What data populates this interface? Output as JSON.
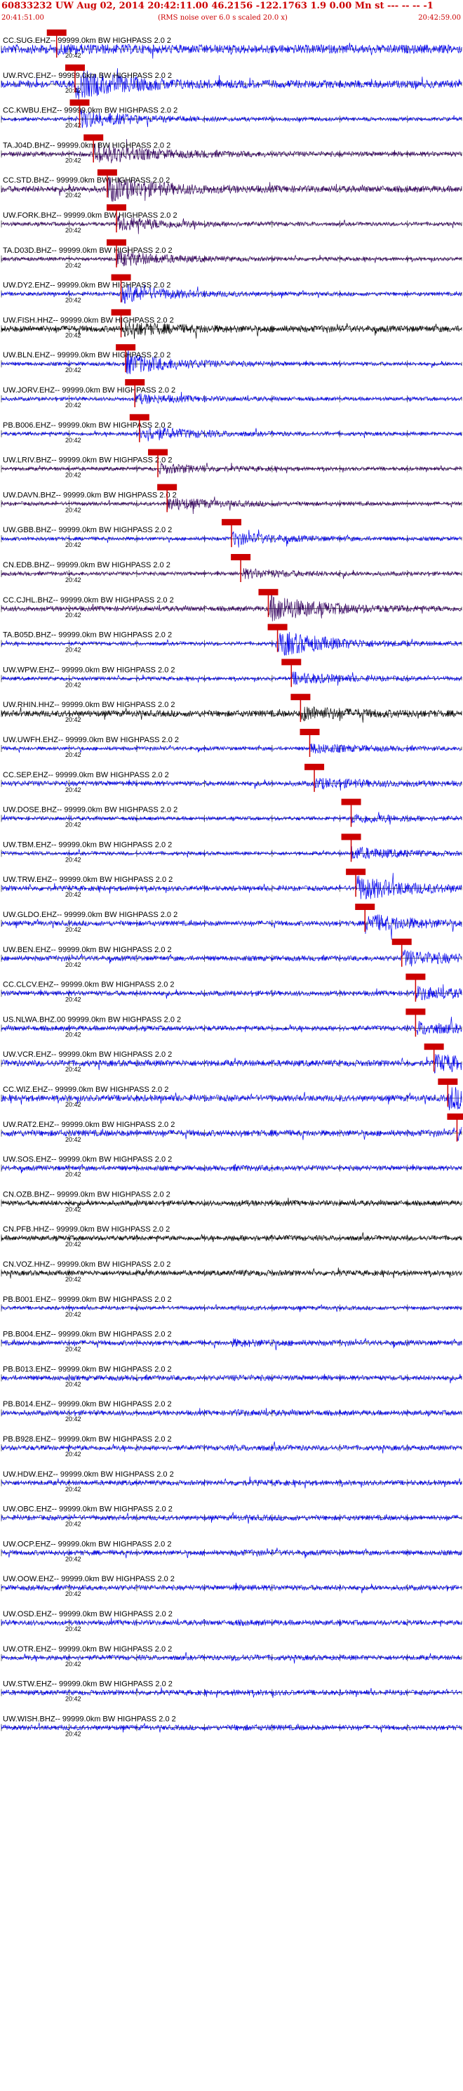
{
  "header": {
    "title": "60833232 UW Aug 02, 2014 20:42:11.00   46.2156 -122.1763  1.9 0.00 Mn st --- -- -- -1",
    "start_time": "20:41:51.00",
    "note": "(RMS noise over 6.0 s scaled 20.0 x)",
    "end_time": "20:42:59.00"
  },
  "colors": {
    "pick": "#cc0000",
    "trace_blue": "#0000ee",
    "trace_purple": "#33005e",
    "trace_black": "#000000",
    "axis": "#000000"
  },
  "chart_data": {
    "type": "line",
    "time_range": [
      "20:41:51.00",
      "20:42:59.00"
    ],
    "time_tick_label": "20:42",
    "traces": [
      {
        "label": "CC.SUG.EHZ-- 99999.0km BW  HIGHPASS  2.0  2",
        "color": "blue",
        "amp": 0.7,
        "burst": 0.1,
        "pick": 0.12
      },
      {
        "label": "UW.RVC.EHZ-- 99999.0km BW  HIGHPASS  2.0  2",
        "color": "blue",
        "amp": 0.6,
        "burst": 0.9,
        "pick": 0.16
      },
      {
        "label": "CC.KWBU.EHZ-- 99999.0km BW  HIGHPASS  2.0  2",
        "color": "blue",
        "amp": 0.3,
        "burst": 0.6,
        "pick": 0.17
      },
      {
        "label": "TA.J04D.BHZ-- 99999.0km BW  HIGHPASS  2.0  2",
        "color": "purple",
        "amp": 0.4,
        "burst": 0.7,
        "pick": 0.2
      },
      {
        "label": "CC.STD.BHZ-- 99999.0km BW  HIGHPASS  2.0  2",
        "color": "purple",
        "amp": 0.5,
        "burst": 0.8,
        "pick": 0.23
      },
      {
        "label": "UW.FORK.BHZ-- 99999.0km BW  HIGHPASS  2.0  2",
        "color": "purple",
        "amp": 0.3,
        "burst": 0.5,
        "pick": 0.25
      },
      {
        "label": "TA.D03D.BHZ-- 99999.0km BW  HIGHPASS  2.0  2",
        "color": "purple",
        "amp": 0.3,
        "burst": 0.5,
        "pick": 0.25
      },
      {
        "label": "UW.DY2.EHZ-- 99999.0km BW  HIGHPASS  2.0  2",
        "color": "blue",
        "amp": 0.3,
        "burst": 0.6,
        "pick": 0.26
      },
      {
        "label": "UW.FISH.HHZ-- 99999.0km BW  HIGHPASS  2.0  2",
        "color": "black",
        "amp": 0.5,
        "burst": 0.4,
        "pick": 0.26
      },
      {
        "label": "UW.BLN.EHZ-- 99999.0km BW  HIGHPASS  2.0  2",
        "color": "blue",
        "amp": 0.3,
        "burst": 0.7,
        "pick": 0.27
      },
      {
        "label": "UW.JORV.EHZ-- 99999.0km BW  HIGHPASS  2.0  2",
        "color": "blue",
        "amp": 0.3,
        "burst": 0.3,
        "pick": 0.29
      },
      {
        "label": "PB.B006.EHZ-- 99999.0km BW  HIGHPASS  2.0  2",
        "color": "blue",
        "amp": 0.3,
        "burst": 0.5,
        "pick": 0.3
      },
      {
        "label": "UW.LRIV.BHZ-- 99999.0km BW  HIGHPASS  2.0  2",
        "color": "purple",
        "amp": 0.3,
        "burst": 0.3,
        "pick": 0.34
      },
      {
        "label": "UW.DAVN.BHZ-- 99999.0km BW  HIGHPASS  2.0  2",
        "color": "purple",
        "amp": 0.3,
        "burst": 0.4,
        "pick": 0.36
      },
      {
        "label": "UW.GBB.BHZ-- 99999.0km BW  HIGHPASS  2.0  2",
        "color": "blue",
        "amp": 0.3,
        "burst": 0.4,
        "pick": 0.5
      },
      {
        "label": "CN.EDB.BHZ-- 99999.0km BW  HIGHPASS  2.0  2",
        "color": "purple",
        "amp": 0.3,
        "burst": 0.3,
        "pick": 0.52
      },
      {
        "label": "CC.CJHL.BHZ-- 99999.0km BW  HIGHPASS  2.0  2",
        "color": "purple",
        "amp": 0.4,
        "burst": 0.9,
        "pick": 0.58
      },
      {
        "label": "TA.B05D.BHZ-- 99999.0km BW  HIGHPASS  2.0  2",
        "color": "blue",
        "amp": 0.3,
        "burst": 0.9,
        "pick": 0.6
      },
      {
        "label": "UW.WPW.EHZ-- 99999.0km BW  HIGHPASS  2.0  2",
        "color": "blue",
        "amp": 0.3,
        "burst": 0.4,
        "pick": 0.63
      },
      {
        "label": "UW.RHIN.HHZ-- 99999.0km BW  HIGHPASS  2.0  2",
        "color": "black",
        "amp": 0.5,
        "burst": 0.4,
        "pick": 0.65
      },
      {
        "label": "UW.UWFH.EHZ-- 99999.0km BW  HIGHPASS  2.0  2",
        "color": "blue",
        "amp": 0.3,
        "burst": 0.3,
        "pick": 0.67
      },
      {
        "label": "CC.SEP.EHZ-- 99999.0km BW  HIGHPASS  2.0  2",
        "color": "blue",
        "amp": 0.4,
        "burst": 0.3,
        "pick": 0.68
      },
      {
        "label": "UW.DOSE.BHZ-- 99999.0km BW  HIGHPASS  2.0  2",
        "color": "blue",
        "amp": 0.3,
        "burst": 0.3,
        "pick": 0.76
      },
      {
        "label": "UW.TBM.EHZ-- 99999.0km BW  HIGHPASS  2.0  2",
        "color": "blue",
        "amp": 0.3,
        "burst": 0.4,
        "pick": 0.76
      },
      {
        "label": "UW.TRW.EHZ-- 99999.0km BW  HIGHPASS  2.0  2",
        "color": "blue",
        "amp": 0.4,
        "burst": 0.8,
        "pick": 0.77
      },
      {
        "label": "UW.GLDO.EHZ-- 99999.0km BW  HIGHPASS  2.0  2",
        "color": "blue",
        "amp": 0.4,
        "burst": 0.6,
        "pick": 0.79
      },
      {
        "label": "UW.BEN.EHZ-- 99999.0km BW  HIGHPASS  2.0  2",
        "color": "blue",
        "amp": 0.4,
        "burst": 0.5,
        "pick": 0.87
      },
      {
        "label": "CC.CLCV.EHZ-- 99999.0km BW  HIGHPASS  2.0  2",
        "color": "blue",
        "amp": 0.4,
        "burst": 0.4,
        "pick": 0.9
      },
      {
        "label": "US.NLWA.BHZ.00 99999.0km BW  HIGHPASS  2.0  2",
        "color": "blue",
        "amp": 0.4,
        "burst": 0.4,
        "pick": 0.9
      },
      {
        "label": "UW.VCR.EHZ-- 99999.0km BW  HIGHPASS  2.0  2",
        "color": "blue",
        "amp": 0.5,
        "burst": 0.5,
        "pick": 0.94
      },
      {
        "label": "CC.WIZ.EHZ-- 99999.0km BW  HIGHPASS  2.0  2",
        "color": "blue",
        "amp": 0.5,
        "burst": 0.7,
        "pick": 0.97
      },
      {
        "label": "UW.RAT2.EHZ-- 99999.0km BW  HIGHPASS  2.0  2",
        "color": "blue",
        "amp": 0.5,
        "burst": 0.4,
        "pick": 0.99
      },
      {
        "label": "UW.SOS.EHZ-- 99999.0km BW  HIGHPASS  2.0  2",
        "color": "blue",
        "amp": 0.4,
        "burst": 0.2,
        "pick": null
      },
      {
        "label": "CN.OZB.BHZ-- 99999.0km BW  HIGHPASS  2.0  2",
        "color": "black",
        "amp": 0.4,
        "burst": 0.2,
        "pick": null
      },
      {
        "label": "CN.PFB.HHZ-- 99999.0km BW  HIGHPASS  2.0  2",
        "color": "black",
        "amp": 0.4,
        "burst": 0.2,
        "pick": null
      },
      {
        "label": "CN.VOZ.HHZ-- 99999.0km BW  HIGHPASS  2.0  2",
        "color": "black",
        "amp": 0.4,
        "burst": 0.2,
        "pick": null
      },
      {
        "label": "PB.B001.EHZ-- 99999.0km BW  HIGHPASS  2.0  2",
        "color": "blue",
        "amp": 0.3,
        "burst": 0.2,
        "pick": null
      },
      {
        "label": "PB.B004.EHZ-- 99999.0km BW  HIGHPASS  2.0  2",
        "color": "blue",
        "amp": 0.4,
        "burst": 0.6,
        "pick": null
      },
      {
        "label": "PB.B013.EHZ-- 99999.0km BW  HIGHPASS  2.0  2",
        "color": "blue",
        "amp": 0.4,
        "burst": 0.2,
        "pick": null
      },
      {
        "label": "PB.B014.EHZ-- 99999.0km BW  HIGHPASS  2.0  2",
        "color": "blue",
        "amp": 0.4,
        "burst": 0.3,
        "pick": null
      },
      {
        "label": "PB.B928.EHZ-- 99999.0km BW  HIGHPASS  2.0  2",
        "color": "blue",
        "amp": 0.4,
        "burst": 0.2,
        "pick": null
      },
      {
        "label": "UW.HDW.EHZ-- 99999.0km BW  HIGHPASS  2.0  2",
        "color": "blue",
        "amp": 0.4,
        "burst": 0.2,
        "pick": null
      },
      {
        "label": "UW.OBC.EHZ-- 99999.0km BW  HIGHPASS  2.0  2",
        "color": "blue",
        "amp": 0.4,
        "burst": 0.2,
        "pick": null
      },
      {
        "label": "UW.OCP.EHZ-- 99999.0km BW  HIGHPASS  2.0  2",
        "color": "blue",
        "amp": 0.4,
        "burst": 0.2,
        "pick": null
      },
      {
        "label": "UW.OOW.EHZ-- 99999.0km BW  HIGHPASS  2.0  2",
        "color": "blue",
        "amp": 0.4,
        "burst": 0.2,
        "pick": null
      },
      {
        "label": "UW.OSD.EHZ-- 99999.0km BW  HIGHPASS  2.0  2",
        "color": "blue",
        "amp": 0.4,
        "burst": 0.2,
        "pick": null
      },
      {
        "label": "UW.OTR.EHZ-- 99999.0km BW  HIGHPASS  2.0  2",
        "color": "blue",
        "amp": 0.4,
        "burst": 0.2,
        "pick": null
      },
      {
        "label": "UW.STW.EHZ-- 99999.0km BW  HIGHPASS  2.0  2",
        "color": "blue",
        "amp": 0.4,
        "burst": 0.2,
        "pick": null
      },
      {
        "label": "UW.WISH.BHZ-- 99999.0km BW  HIGHPASS  2.0  2",
        "color": "blue",
        "amp": 0.4,
        "burst": 0.2,
        "pick": null
      }
    ]
  }
}
